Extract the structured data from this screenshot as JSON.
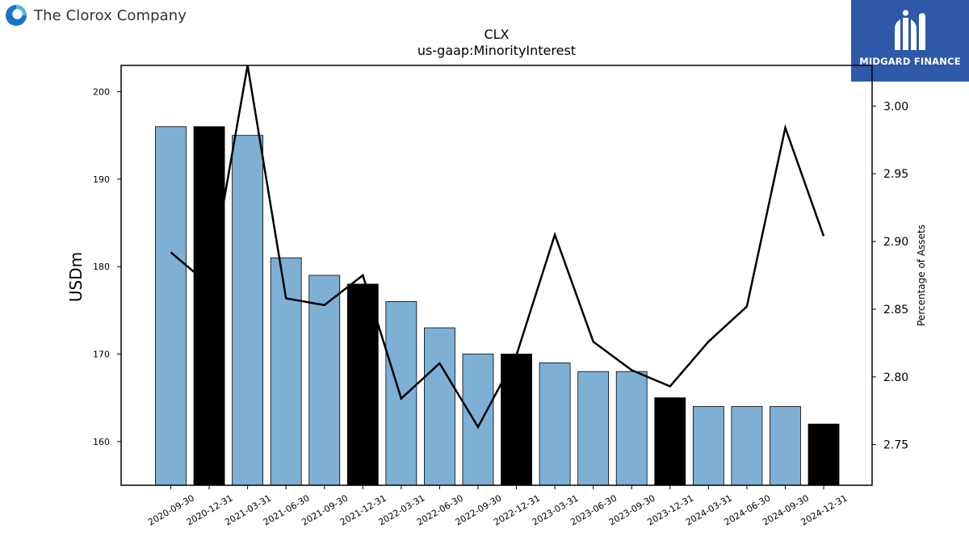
{
  "header": {
    "company": "The Clorox Company",
    "logo_icon": "clorox-logo-icon"
  },
  "badge": {
    "text": "MIDGARD FINANCE",
    "logo_icon": "midgard-logo-icon",
    "color": "#2e58a8"
  },
  "chart_data": {
    "type": "bar",
    "title": "CLX",
    "subtitle": "us-gaap:MinorityInterest",
    "ylabel": "USDm",
    "y2label": "Percentage of Assets",
    "ylim": [
      155,
      203
    ],
    "y2lim": [
      2.72,
      3.03
    ],
    "yticks": [
      160,
      170,
      180,
      190,
      200
    ],
    "y2ticks": [
      "2.75",
      "2.80",
      "2.85",
      "2.90",
      "2.95",
      "3.00"
    ],
    "categories": [
      "2020-09-30",
      "2020-12-31",
      "2021-03-31",
      "2021-06-30",
      "2021-09-30",
      "2021-12-31",
      "2022-03-31",
      "2022-06-30",
      "2022-09-30",
      "2022-12-31",
      "2023-03-31",
      "2023-06-30",
      "2023-09-30",
      "2023-12-31",
      "2024-03-31",
      "2024-06-30",
      "2024-09-30",
      "2024-12-31"
    ],
    "series": [
      {
        "type": "bar",
        "values": [
          196,
          196,
          195,
          181,
          179,
          178,
          176,
          173,
          170,
          170,
          169,
          168,
          168,
          165,
          164,
          164,
          164,
          162
        ],
        "colors": [
          "#7eb0d5",
          "#000000",
          "#7eb0d5",
          "#7eb0d5",
          "#7eb0d5",
          "#000000",
          "#7eb0d5",
          "#7eb0d5",
          "#7eb0d5",
          "#000000",
          "#7eb0d5",
          "#7eb0d5",
          "#7eb0d5",
          "#000000",
          "#7eb0d5",
          "#7eb0d5",
          "#7eb0d5",
          "#000000"
        ]
      },
      {
        "type": "line",
        "axis": "right",
        "values": [
          2.892,
          2.868,
          3.03,
          2.858,
          2.853,
          2.875,
          2.784,
          2.81,
          2.763,
          2.816,
          2.905,
          2.826,
          2.805,
          2.793,
          2.826,
          2.852,
          2.984,
          2.904
        ],
        "color": "#000000"
      }
    ],
    "colors": {
      "bar": "#7eb0d5",
      "bar_highlight": "#000000",
      "line": "#000000"
    },
    "grid": false,
    "legend": "none"
  }
}
